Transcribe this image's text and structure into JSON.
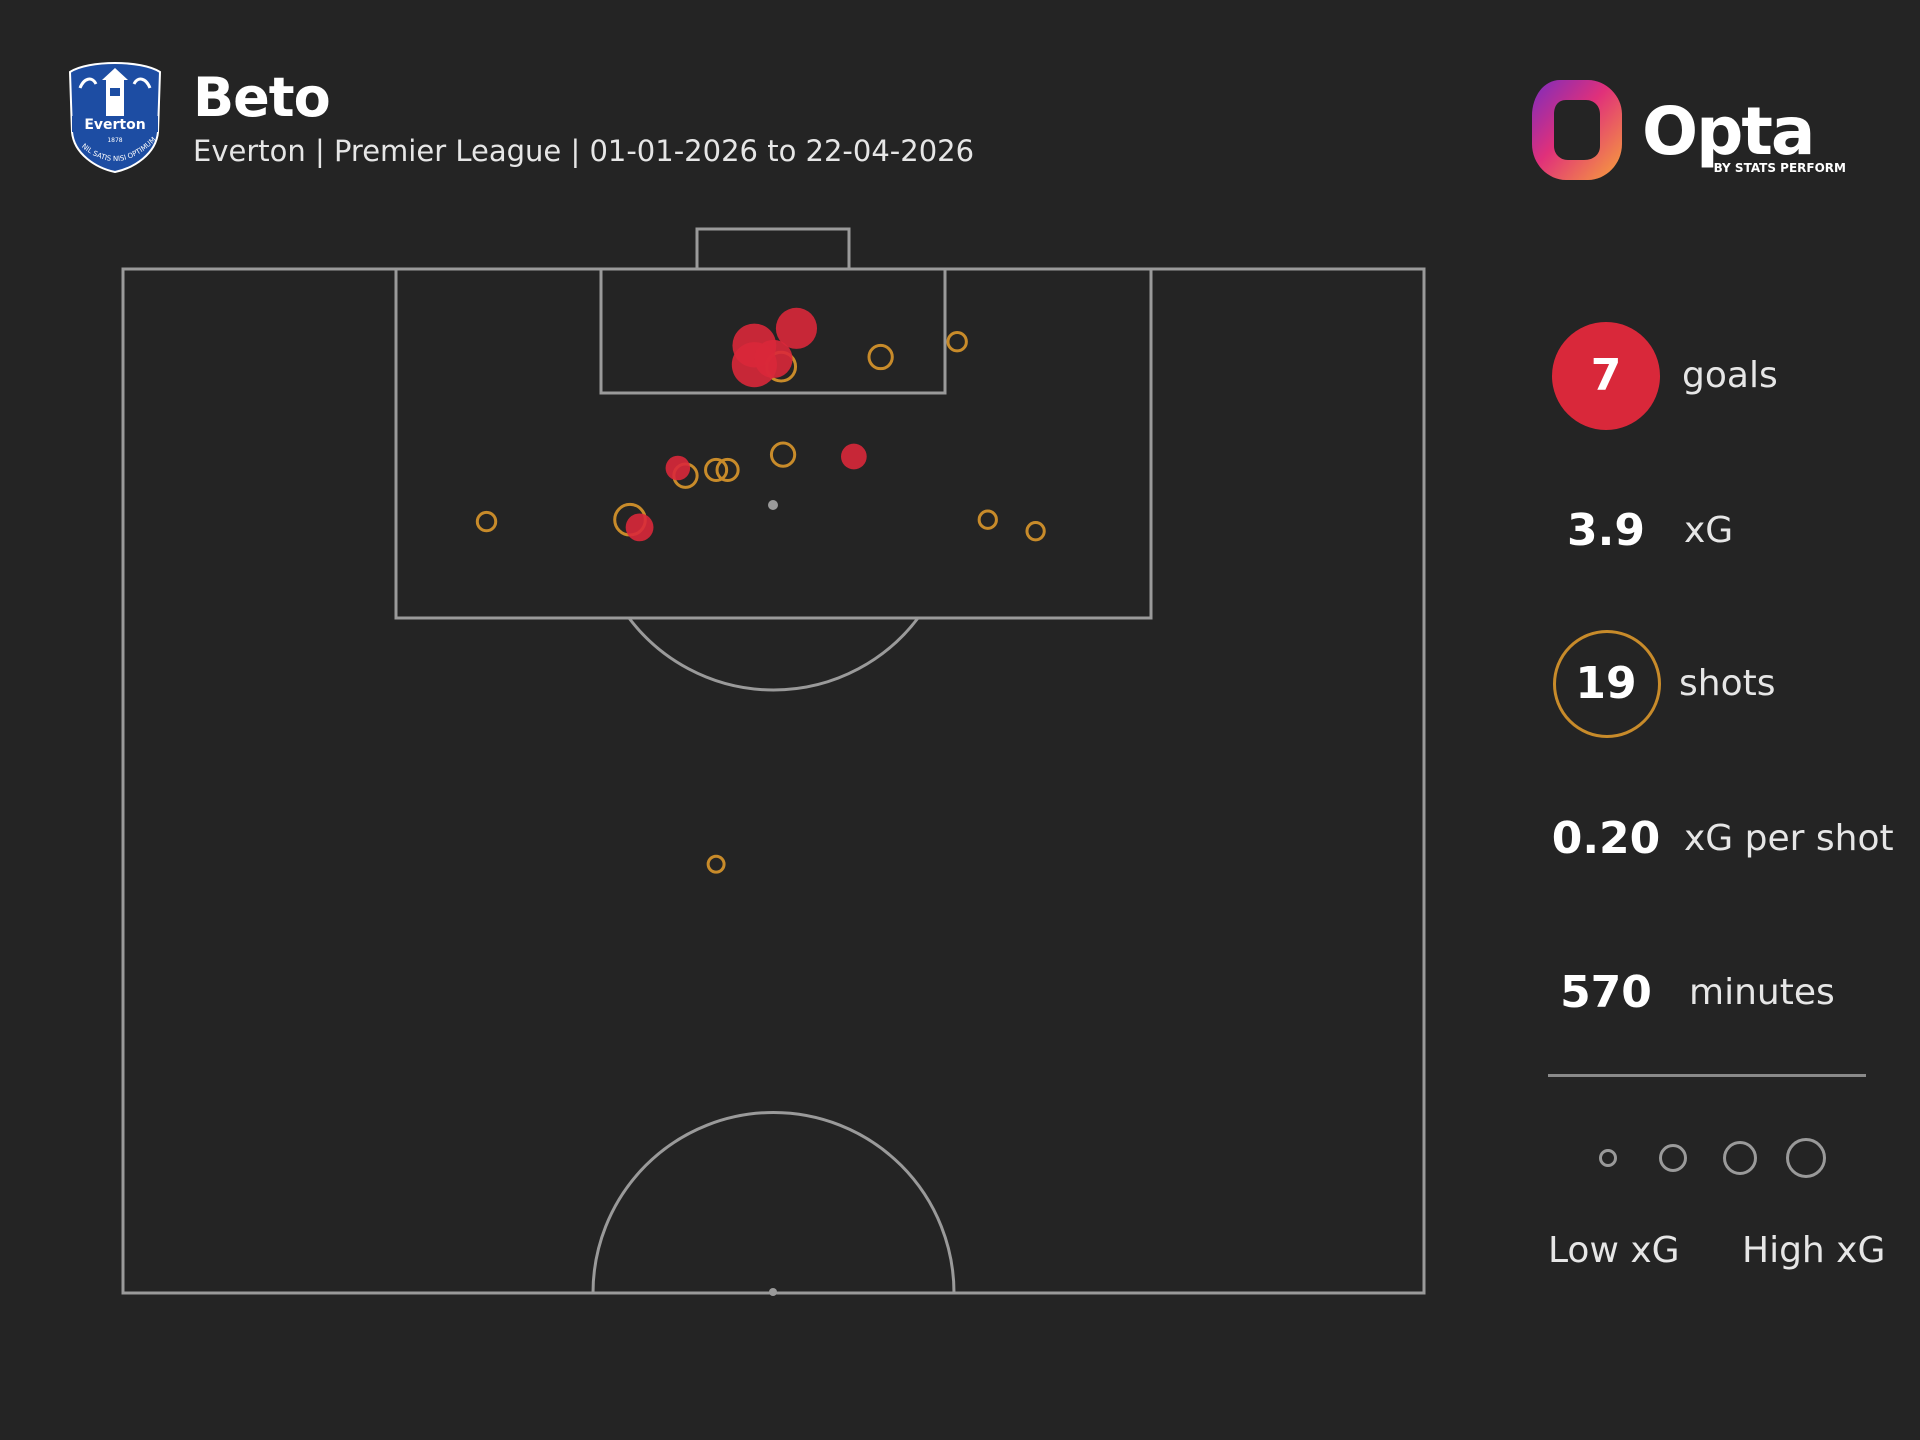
{
  "header": {
    "player_name": "Beto",
    "subtitle": "Everton | Premier League | 01-01-2026 to 22-04-2026"
  },
  "crest": {
    "name": "everton-crest",
    "text": "Everton",
    "year": "1878",
    "motto": "NIL SATIS NISI OPTIMUM"
  },
  "brand": {
    "name": "Opta",
    "tagline": "BY STATS PERFORM"
  },
  "colors": {
    "background": "#242424",
    "pitch_lines": "#9a9a9a",
    "goal": "#d9283a",
    "shot": "#c88b2a"
  },
  "stats": {
    "goals": {
      "value": "7",
      "label": "goals"
    },
    "xg": {
      "value": "3.9",
      "label": "xG"
    },
    "shots": {
      "value": "19",
      "label": "shots"
    },
    "xg_per_shot": {
      "value": "0.20",
      "label": "xG per shot"
    },
    "minutes": {
      "value": "570",
      "label": "minutes"
    }
  },
  "legend": {
    "low_label": "Low xG",
    "high_label": "High xG"
  },
  "chart_data": {
    "type": "scatter",
    "pitch": "half-pitch shot map, vertical, attacking upward",
    "x_axis": "pitch width, 0 (left touchline) to 68 (right touchline) in metres",
    "y_axis": "distance from goal line in metres, 0 at goal line to 52.5 at halfway line",
    "series": [
      {
        "name": "goals",
        "color": "#d9283a",
        "points": [
          {
            "x": 33.0,
            "y": 4.0,
            "xg": 0.65
          },
          {
            "x": 35.2,
            "y": 3.1,
            "xg": 0.55
          },
          {
            "x": 33.0,
            "y": 5.0,
            "xg": 0.7
          },
          {
            "x": 34.0,
            "y": 4.7,
            "xg": 0.45
          },
          {
            "x": 38.2,
            "y": 9.8,
            "xg": 0.14
          },
          {
            "x": 29.0,
            "y": 10.4,
            "xg": 0.12
          },
          {
            "x": 27.0,
            "y": 13.5,
            "xg": 0.18
          }
        ]
      },
      {
        "name": "shots",
        "color": "#c88b2a",
        "points": [
          {
            "x": 34.4,
            "y": 5.1,
            "xg": 0.2
          },
          {
            "x": 39.6,
            "y": 4.6,
            "xg": 0.1
          },
          {
            "x": 43.6,
            "y": 3.8,
            "xg": 0.04
          },
          {
            "x": 29.4,
            "y": 10.8,
            "xg": 0.1
          },
          {
            "x": 31.0,
            "y": 10.5,
            "xg": 0.07
          },
          {
            "x": 31.6,
            "y": 10.5,
            "xg": 0.07
          },
          {
            "x": 34.5,
            "y": 9.7,
            "xg": 0.1
          },
          {
            "x": 19.0,
            "y": 13.2,
            "xg": 0.04
          },
          {
            "x": 26.5,
            "y": 13.1,
            "xg": 0.24
          },
          {
            "x": 45.2,
            "y": 13.1,
            "xg": 0.03
          },
          {
            "x": 47.7,
            "y": 13.7,
            "xg": 0.03
          },
          {
            "x": 31.0,
            "y": 31.1,
            "xg": 0.02
          }
        ]
      }
    ]
  }
}
